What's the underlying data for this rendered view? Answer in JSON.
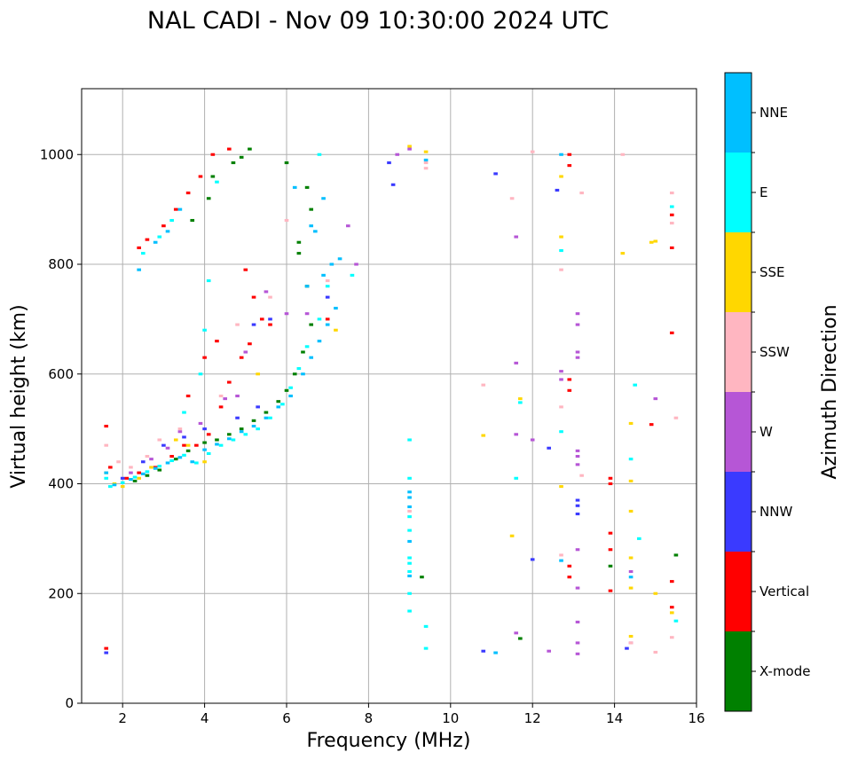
{
  "chart_data": {
    "type": "scatter",
    "title": "NAL CADI - Nov 09 10:30:00 2024 UTC",
    "xlabel": "Frequency (MHz)",
    "ylabel": "Virtual height (km)",
    "xlim": [
      1,
      16
    ],
    "ylim": [
      0,
      1120
    ],
    "xticks": [
      2,
      4,
      6,
      8,
      10,
      12,
      14,
      16
    ],
    "yticks": [
      0,
      200,
      400,
      600,
      800,
      1000
    ],
    "grid": true,
    "marker": "short horizontal dash (~0.1 MHz x ~5 km)",
    "colorbar": {
      "label": "Azimuth Direction",
      "categories": [
        {
          "name": "X-mode",
          "color": "#008000"
        },
        {
          "name": "Vertical",
          "color": "#ff0000"
        },
        {
          "name": "NNW",
          "color": "#3a3aff"
        },
        {
          "name": "W",
          "color": "#b656d6"
        },
        {
          "name": "SSW",
          "color": "#ffb6c1"
        },
        {
          "name": "SSE",
          "color": "#ffd700"
        },
        {
          "name": "E",
          "color": "#00ffff"
        },
        {
          "name": "NNE",
          "color": "#00bfff"
        }
      ]
    },
    "series": [
      {
        "name": "X-mode",
        "points": [
          [
            2.3,
            405
          ],
          [
            2.6,
            415
          ],
          [
            2.9,
            425
          ],
          [
            3.3,
            445
          ],
          [
            3.6,
            460
          ],
          [
            4.0,
            475
          ],
          [
            4.3,
            480
          ],
          [
            4.6,
            490
          ],
          [
            4.9,
            500
          ],
          [
            5.2,
            515
          ],
          [
            5.5,
            530
          ],
          [
            5.8,
            550
          ],
          [
            6.0,
            570
          ],
          [
            6.2,
            600
          ],
          [
            6.4,
            640
          ],
          [
            6.6,
            690
          ],
          [
            6.5,
            760
          ],
          [
            6.3,
            820
          ],
          [
            6.3,
            840
          ],
          [
            6.6,
            900
          ],
          [
            6.5,
            940
          ],
          [
            6.0,
            985
          ],
          [
            5.1,
            1010
          ],
          [
            4.9,
            995
          ],
          [
            4.7,
            985
          ],
          [
            4.2,
            960
          ],
          [
            4.1,
            920
          ],
          [
            3.7,
            880
          ],
          [
            9.3,
            230
          ],
          [
            11.7,
            118
          ],
          [
            15.5,
            270
          ],
          [
            13.9,
            250
          ]
        ]
      },
      {
        "name": "Vertical",
        "points": [
          [
            1.6,
            505
          ],
          [
            1.7,
            430
          ],
          [
            2.1,
            410
          ],
          [
            2.4,
            420
          ],
          [
            2.8,
            430
          ],
          [
            3.2,
            450
          ],
          [
            3.5,
            470
          ],
          [
            3.8,
            470
          ],
          [
            4.1,
            490
          ],
          [
            4.4,
            540
          ],
          [
            4.6,
            585
          ],
          [
            4.9,
            630
          ],
          [
            5.1,
            655
          ],
          [
            5.4,
            700
          ],
          [
            5.6,
            690
          ],
          [
            4.3,
            660
          ],
          [
            4.0,
            630
          ],
          [
            3.6,
            560
          ],
          [
            2.4,
            830
          ],
          [
            2.6,
            845
          ],
          [
            3.0,
            870
          ],
          [
            3.3,
            900
          ],
          [
            3.6,
            930
          ],
          [
            3.9,
            960
          ],
          [
            4.2,
            1000
          ],
          [
            4.6,
            1010
          ],
          [
            5.0,
            790
          ],
          [
            5.2,
            740
          ],
          [
            7.0,
            700
          ],
          [
            12.9,
            590
          ],
          [
            12.9,
            570
          ],
          [
            12.9,
            1000
          ],
          [
            12.9,
            980
          ],
          [
            12.9,
            250
          ],
          [
            12.9,
            230
          ],
          [
            13.9,
            410
          ],
          [
            13.9,
            400
          ],
          [
            13.9,
            310
          ],
          [
            13.9,
            280
          ],
          [
            13.9,
            205
          ],
          [
            14.9,
            508
          ],
          [
            15.4,
            675
          ],
          [
            15.4,
            222
          ],
          [
            15.4,
            175
          ],
          [
            15.4,
            890
          ],
          [
            15.4,
            830
          ],
          [
            1.6,
            100
          ]
        ]
      },
      {
        "name": "NNW",
        "points": [
          [
            2.0,
            410
          ],
          [
            2.5,
            440
          ],
          [
            3.0,
            470
          ],
          [
            3.5,
            485
          ],
          [
            4.0,
            500
          ],
          [
            4.8,
            520
          ],
          [
            5.3,
            540
          ],
          [
            5.2,
            690
          ],
          [
            5.6,
            700
          ],
          [
            7.0,
            740
          ],
          [
            8.5,
            985
          ],
          [
            8.6,
            945
          ],
          [
            11.1,
            965
          ],
          [
            12.0,
            262
          ],
          [
            12.4,
            465
          ],
          [
            12.6,
            935
          ],
          [
            13.1,
            360
          ],
          [
            13.1,
            370
          ],
          [
            13.1,
            345
          ],
          [
            14.3,
            100
          ],
          [
            10.8,
            95
          ],
          [
            1.6,
            92
          ]
        ]
      },
      {
        "name": "W",
        "points": [
          [
            2.2,
            420
          ],
          [
            2.7,
            445
          ],
          [
            3.1,
            465
          ],
          [
            3.4,
            495
          ],
          [
            3.9,
            510
          ],
          [
            4.5,
            555
          ],
          [
            4.8,
            560
          ],
          [
            5.0,
            640
          ],
          [
            5.5,
            750
          ],
          [
            6.0,
            710
          ],
          [
            6.5,
            710
          ],
          [
            7.5,
            870
          ],
          [
            7.7,
            800
          ],
          [
            8.7,
            1000
          ],
          [
            9.0,
            1010
          ],
          [
            11.6,
            850
          ],
          [
            11.6,
            620
          ],
          [
            11.6,
            490
          ],
          [
            12.0,
            480
          ],
          [
            12.7,
            605
          ],
          [
            12.7,
            590
          ],
          [
            13.1,
            710
          ],
          [
            13.1,
            690
          ],
          [
            13.1,
            640
          ],
          [
            13.1,
            630
          ],
          [
            13.1,
            460
          ],
          [
            13.1,
            450
          ],
          [
            13.1,
            435
          ],
          [
            13.1,
            280
          ],
          [
            13.1,
            210
          ],
          [
            13.1,
            148
          ],
          [
            13.1,
            110
          ],
          [
            13.1,
            90
          ],
          [
            14.4,
            240
          ],
          [
            14.4,
            110
          ],
          [
            15.0,
            555
          ],
          [
            12.4,
            95
          ],
          [
            11.6,
            128
          ]
        ]
      },
      {
        "name": "SSW",
        "points": [
          [
            1.6,
            470
          ],
          [
            1.9,
            440
          ],
          [
            2.2,
            430
          ],
          [
            2.6,
            450
          ],
          [
            2.9,
            480
          ],
          [
            3.4,
            500
          ],
          [
            4.4,
            560
          ],
          [
            4.8,
            690
          ],
          [
            5.6,
            740
          ],
          [
            6.0,
            880
          ],
          [
            7.0,
            770
          ],
          [
            9.0,
            350
          ],
          [
            9.4,
            985
          ],
          [
            9.4,
            975
          ],
          [
            10.8,
            580
          ],
          [
            11.5,
            920
          ],
          [
            12.0,
            1005
          ],
          [
            12.7,
            270
          ],
          [
            12.7,
            540
          ],
          [
            12.7,
            790
          ],
          [
            13.2,
            415
          ],
          [
            13.2,
            930
          ],
          [
            14.2,
            1000
          ],
          [
            15.4,
            930
          ],
          [
            15.4,
            875
          ],
          [
            15.5,
            520
          ],
          [
            15.4,
            120
          ],
          [
            15.0,
            93
          ],
          [
            14.4,
            110
          ]
        ]
      },
      {
        "name": "SSE",
        "points": [
          [
            1.6,
            420
          ],
          [
            1.8,
            400
          ],
          [
            2.0,
            395
          ],
          [
            2.4,
            410
          ],
          [
            2.7,
            430
          ],
          [
            3.3,
            480
          ],
          [
            3.6,
            470
          ],
          [
            4.0,
            440
          ],
          [
            5.3,
            600
          ],
          [
            7.2,
            680
          ],
          [
            9.0,
            1015
          ],
          [
            9.4,
            1005
          ],
          [
            10.8,
            488
          ],
          [
            11.5,
            305
          ],
          [
            11.7,
            555
          ],
          [
            12.7,
            960
          ],
          [
            12.7,
            850
          ],
          [
            12.7,
            395
          ],
          [
            14.2,
            820
          ],
          [
            14.4,
            510
          ],
          [
            14.4,
            405
          ],
          [
            14.4,
            350
          ],
          [
            14.4,
            265
          ],
          [
            14.4,
            210
          ],
          [
            14.4,
            122
          ],
          [
            14.9,
            840
          ],
          [
            15.0,
            842
          ],
          [
            15.0,
            200
          ],
          [
            15.4,
            165
          ]
        ]
      },
      {
        "name": "E",
        "points": [
          [
            1.6,
            410
          ],
          [
            1.7,
            395
          ],
          [
            2.0,
            402
          ],
          [
            2.3,
            412
          ],
          [
            2.6,
            422
          ],
          [
            2.9,
            432
          ],
          [
            3.2,
            442
          ],
          [
            3.5,
            452
          ],
          [
            3.8,
            438
          ],
          [
            4.1,
            455
          ],
          [
            4.4,
            470
          ],
          [
            4.7,
            480
          ],
          [
            5.0,
            490
          ],
          [
            5.3,
            500
          ],
          [
            5.6,
            520
          ],
          [
            5.9,
            545
          ],
          [
            6.1,
            575
          ],
          [
            6.3,
            610
          ],
          [
            6.5,
            650
          ],
          [
            6.8,
            700
          ],
          [
            7.0,
            760
          ],
          [
            7.6,
            780
          ],
          [
            3.5,
            530
          ],
          [
            3.9,
            600
          ],
          [
            4.0,
            680
          ],
          [
            4.1,
            770
          ],
          [
            2.5,
            820
          ],
          [
            2.9,
            850
          ],
          [
            3.2,
            880
          ],
          [
            4.3,
            950
          ],
          [
            6.8,
            1000
          ],
          [
            9.0,
            480
          ],
          [
            9.0,
            410
          ],
          [
            9.0,
            340
          ],
          [
            9.0,
            315
          ],
          [
            9.0,
            265
          ],
          [
            9.0,
            255
          ],
          [
            9.0,
            240
          ],
          [
            9.0,
            200
          ],
          [
            9.0,
            168
          ],
          [
            9.4,
            140
          ],
          [
            9.4,
            100
          ],
          [
            11.6,
            410
          ],
          [
            11.7,
            548
          ],
          [
            12.7,
            495
          ],
          [
            12.7,
            825
          ],
          [
            14.4,
            445
          ],
          [
            14.5,
            580
          ],
          [
            14.6,
            300
          ],
          [
            15.4,
            905
          ],
          [
            15.5,
            150
          ]
        ]
      },
      {
        "name": "NNE",
        "points": [
          [
            1.6,
            420
          ],
          [
            1.8,
            398
          ],
          [
            2.2,
            408
          ],
          [
            2.5,
            418
          ],
          [
            2.8,
            428
          ],
          [
            3.1,
            438
          ],
          [
            3.4,
            448
          ],
          [
            3.7,
            440
          ],
          [
            4.0,
            462
          ],
          [
            4.3,
            472
          ],
          [
            4.6,
            482
          ],
          [
            4.9,
            495
          ],
          [
            5.2,
            505
          ],
          [
            5.5,
            520
          ],
          [
            5.8,
            540
          ],
          [
            6.1,
            560
          ],
          [
            6.4,
            600
          ],
          [
            6.6,
            630
          ],
          [
            6.8,
            660
          ],
          [
            7.0,
            690
          ],
          [
            7.2,
            720
          ],
          [
            6.5,
            760
          ],
          [
            6.9,
            780
          ],
          [
            7.1,
            800
          ],
          [
            7.3,
            810
          ],
          [
            6.7,
            860
          ],
          [
            6.6,
            870
          ],
          [
            6.9,
            920
          ],
          [
            6.2,
            940
          ],
          [
            2.4,
            790
          ],
          [
            2.8,
            840
          ],
          [
            3.1,
            860
          ],
          [
            3.4,
            900
          ],
          [
            9.0,
            385
          ],
          [
            9.0,
            375
          ],
          [
            9.0,
            358
          ],
          [
            9.0,
            295
          ],
          [
            9.0,
            232
          ],
          [
            9.4,
            990
          ],
          [
            11.1,
            92
          ],
          [
            12.7,
            1000
          ],
          [
            12.7,
            260
          ],
          [
            14.4,
            230
          ]
        ]
      }
    ]
  }
}
